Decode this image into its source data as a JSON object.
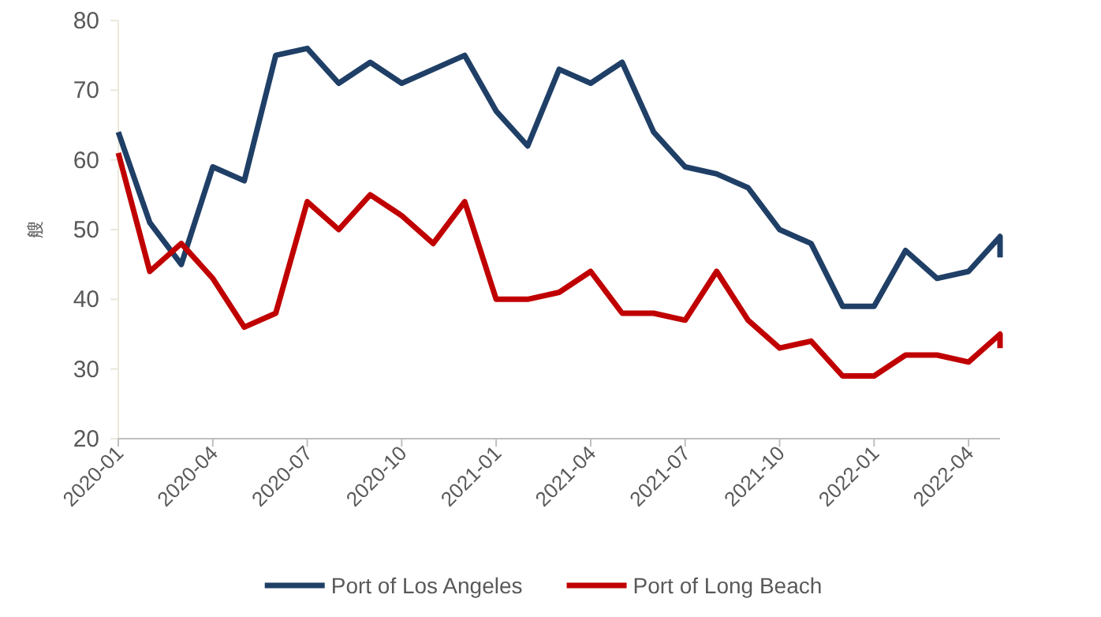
{
  "chart_data": {
    "type": "line",
    "ylabel": "艘",
    "x": [
      "2020-01",
      "2020-02",
      "2020-03",
      "2020-04",
      "2020-05",
      "2020-06",
      "2020-07",
      "2020-08",
      "2020-09",
      "2020-10",
      "2020-11",
      "2020-12",
      "2021-01",
      "2021-02",
      "2021-03",
      "2021-04",
      "2021-05",
      "2021-06",
      "2021-07",
      "2021-08",
      "2021-09",
      "2021-10",
      "2021-11",
      "2021-12",
      "2022-01",
      "2022-02",
      "2022-03",
      "2022-04",
      "2022-05",
      "2022-05"
    ],
    "series": [
      {
        "name": "Port of Los Angeles",
        "color": "#1f3f66",
        "values": [
          64,
          51,
          45,
          59,
          57,
          75,
          76,
          71,
          74,
          71,
          73,
          75,
          67,
          62,
          73,
          71,
          74,
          64,
          59,
          58,
          56,
          50,
          48,
          39,
          39,
          47,
          43,
          44,
          49,
          46
        ]
      },
      {
        "name": "Port of Long Beach",
        "color": "#c00000",
        "values": [
          61,
          44,
          48,
          43,
          36,
          38,
          54,
          50,
          55,
          52,
          48,
          54,
          40,
          40,
          41,
          44,
          38,
          38,
          37,
          44,
          37,
          33,
          34,
          29,
          29,
          32,
          32,
          31,
          35,
          33
        ]
      }
    ],
    "xlim": [
      "2020-01",
      "2022-05"
    ],
    "ylim": [
      20,
      80
    ],
    "yticks": [
      20,
      30,
      40,
      50,
      60,
      70,
      80
    ],
    "xticks": [
      "2020-01",
      "2020-04",
      "2020-07",
      "2020-10",
      "2021-01",
      "2021-04",
      "2021-07",
      "2021-10",
      "2022-01",
      "2022-04"
    ],
    "legend": "bottom"
  }
}
